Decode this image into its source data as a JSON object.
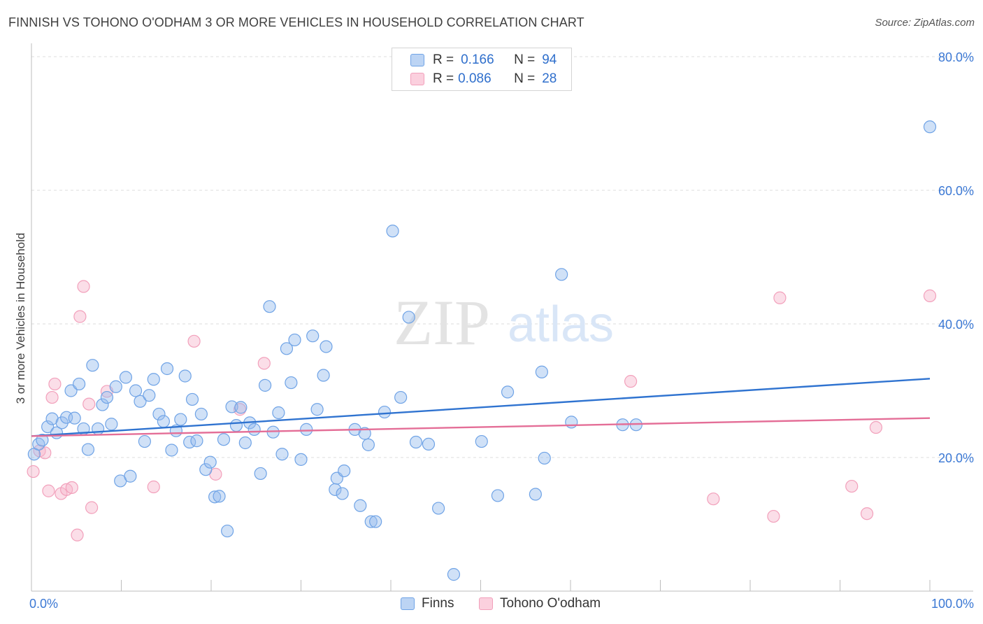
{
  "title": "FINNISH VS TOHONO O'ODHAM 3 OR MORE VEHICLES IN HOUSEHOLD CORRELATION CHART",
  "source": "Source: ZipAtlas.com",
  "watermark": {
    "zip": "ZIP",
    "atlas": "atlas"
  },
  "legend": {
    "r_label": "R =",
    "n_label": "N =",
    "items": [
      {
        "r": "0.166",
        "n": "94"
      },
      {
        "r": "0.086",
        "n": "28"
      }
    ]
  },
  "chart_data": {
    "type": "scatter",
    "title": "FINNISH VS TOHONO O'ODHAM 3 OR MORE VEHICLES IN HOUSEHOLD CORRELATION CHART",
    "xlabel": "",
    "ylabel": "3 or more Vehicles in Household",
    "xlim": [
      0,
      100
    ],
    "ylim": [
      0,
      82
    ],
    "x_tick_labels": [
      "0.0%",
      "100.0%"
    ],
    "y_ticks": [
      20,
      40,
      60,
      80
    ],
    "y_tick_labels": [
      "20.0%",
      "40.0%",
      "60.0%",
      "80.0%"
    ],
    "grid": true,
    "colors": {
      "Finns": "#6fa3e6",
      "Tohono O'odham": "#f2a0bb",
      "Finns_line": "#2f73d0",
      "Tohono_line": "#e46e97"
    },
    "series": [
      {
        "name": "Finns",
        "trend": {
          "x": [
            0,
            100
          ],
          "y": [
            23.2,
            31.8
          ]
        },
        "points": [
          [
            0.3,
            20.5
          ],
          [
            0.8,
            22.0
          ],
          [
            1.2,
            22.6
          ],
          [
            1.8,
            24.6
          ],
          [
            2.3,
            25.8
          ],
          [
            2.8,
            23.7
          ],
          [
            3.4,
            25.2
          ],
          [
            3.9,
            26.0
          ],
          [
            4.4,
            30.0
          ],
          [
            4.8,
            25.9
          ],
          [
            5.3,
            31.0
          ],
          [
            5.8,
            24.3
          ],
          [
            6.3,
            21.2
          ],
          [
            6.8,
            33.8
          ],
          [
            7.4,
            24.3
          ],
          [
            7.9,
            27.9
          ],
          [
            8.4,
            29.0
          ],
          [
            8.9,
            25.0
          ],
          [
            9.4,
            30.6
          ],
          [
            9.9,
            16.5
          ],
          [
            10.5,
            32.0
          ],
          [
            11.0,
            17.2
          ],
          [
            11.6,
            30.0
          ],
          [
            12.1,
            28.4
          ],
          [
            12.6,
            22.4
          ],
          [
            13.1,
            29.3
          ],
          [
            13.6,
            31.7
          ],
          [
            14.2,
            26.5
          ],
          [
            14.7,
            25.4
          ],
          [
            15.1,
            33.3
          ],
          [
            15.6,
            21.1
          ],
          [
            16.1,
            24.0
          ],
          [
            16.6,
            25.7
          ],
          [
            17.1,
            32.2
          ],
          [
            17.6,
            22.3
          ],
          [
            17.9,
            28.7
          ],
          [
            18.4,
            22.5
          ],
          [
            18.9,
            26.5
          ],
          [
            19.4,
            18.2
          ],
          [
            19.9,
            19.3
          ],
          [
            20.4,
            14.1
          ],
          [
            20.9,
            14.2
          ],
          [
            21.4,
            22.7
          ],
          [
            21.8,
            9.0
          ],
          [
            22.3,
            27.6
          ],
          [
            22.8,
            24.8
          ],
          [
            23.3,
            27.5
          ],
          [
            23.8,
            22.2
          ],
          [
            24.3,
            25.2
          ],
          [
            24.8,
            24.2
          ],
          [
            25.5,
            17.6
          ],
          [
            26.0,
            30.8
          ],
          [
            26.5,
            42.6
          ],
          [
            26.9,
            23.8
          ],
          [
            27.5,
            26.7
          ],
          [
            27.9,
            20.5
          ],
          [
            28.4,
            36.3
          ],
          [
            28.9,
            31.2
          ],
          [
            29.3,
            37.6
          ],
          [
            30.0,
            19.7
          ],
          [
            30.6,
            24.2
          ],
          [
            31.3,
            38.2
          ],
          [
            31.8,
            27.2
          ],
          [
            32.5,
            32.3
          ],
          [
            32.8,
            36.6
          ],
          [
            33.8,
            15.2
          ],
          [
            34.0,
            16.9
          ],
          [
            34.6,
            14.6
          ],
          [
            34.8,
            18.0
          ],
          [
            36.0,
            24.2
          ],
          [
            36.6,
            12.8
          ],
          [
            37.1,
            23.6
          ],
          [
            37.5,
            21.9
          ],
          [
            37.8,
            10.4
          ],
          [
            38.3,
            10.4
          ],
          [
            39.3,
            26.8
          ],
          [
            40.2,
            53.9
          ],
          [
            41.1,
            29.0
          ],
          [
            42.0,
            41.0
          ],
          [
            42.8,
            22.3
          ],
          [
            44.2,
            22.0
          ],
          [
            45.3,
            12.4
          ],
          [
            47.0,
            2.5
          ],
          [
            50.1,
            22.4
          ],
          [
            51.9,
            14.3
          ],
          [
            53.0,
            29.8
          ],
          [
            56.1,
            14.5
          ],
          [
            56.8,
            32.8
          ],
          [
            57.1,
            19.9
          ],
          [
            59.0,
            47.4
          ],
          [
            60.1,
            25.3
          ],
          [
            65.8,
            24.9
          ],
          [
            67.3,
            24.9
          ],
          [
            100.0,
            69.5
          ]
        ]
      },
      {
        "name": "Tohono O'odham",
        "trend": {
          "x": [
            0,
            100
          ],
          "y": [
            23.2,
            25.9
          ]
        },
        "points": [
          [
            0.2,
            17.9
          ],
          [
            0.9,
            21.0
          ],
          [
            1.5,
            20.7
          ],
          [
            1.9,
            15.0
          ],
          [
            2.3,
            29.0
          ],
          [
            2.6,
            31.0
          ],
          [
            3.3,
            14.6
          ],
          [
            3.9,
            15.2
          ],
          [
            4.5,
            15.5
          ],
          [
            5.1,
            8.4
          ],
          [
            5.4,
            41.1
          ],
          [
            5.8,
            45.6
          ],
          [
            6.4,
            28.0
          ],
          [
            6.7,
            12.5
          ],
          [
            8.4,
            29.9
          ],
          [
            13.6,
            15.6
          ],
          [
            18.1,
            37.4
          ],
          [
            20.5,
            17.5
          ],
          [
            23.2,
            27.2
          ],
          [
            25.9,
            34.1
          ],
          [
            66.7,
            31.4
          ],
          [
            75.9,
            13.8
          ],
          [
            82.6,
            11.2
          ],
          [
            83.3,
            43.9
          ],
          [
            91.3,
            15.7
          ],
          [
            93.0,
            11.6
          ],
          [
            94.0,
            24.5
          ],
          [
            100.0,
            44.2
          ]
        ]
      }
    ]
  }
}
